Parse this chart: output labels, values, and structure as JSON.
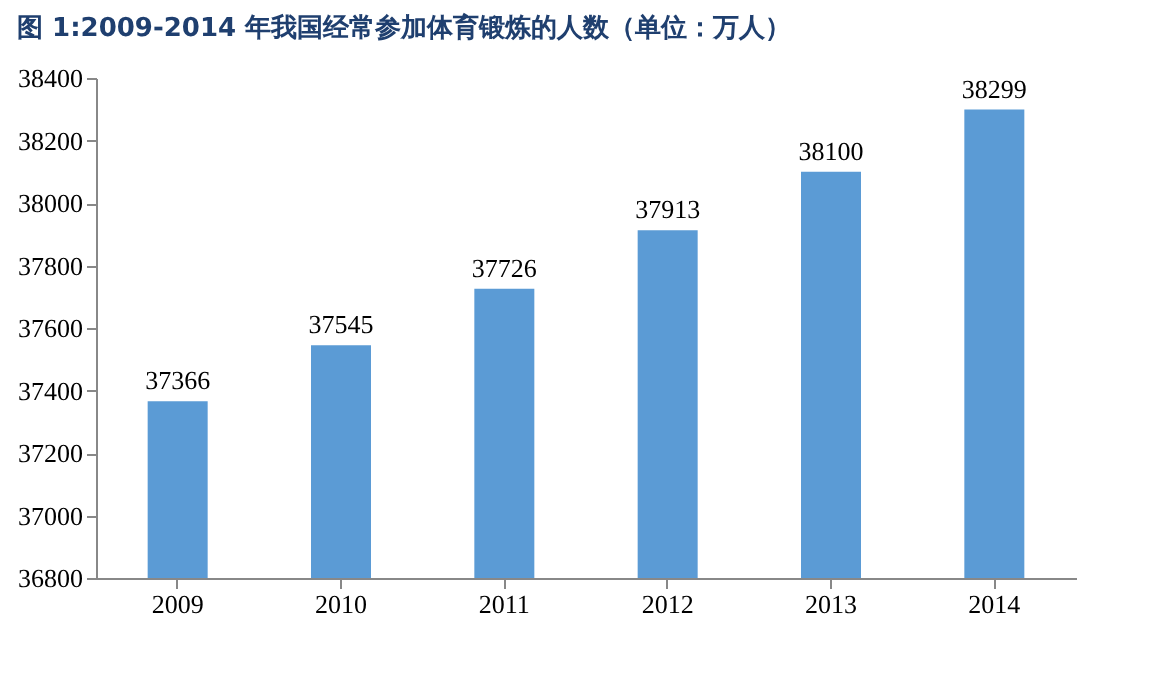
{
  "chart_data": {
    "type": "bar",
    "title": "图 1:2009-2014 年我国经常参加体育锻炼的人数（单位：万人）",
    "categories": [
      "2009",
      "2010",
      "2011",
      "2012",
      "2013",
      "2014"
    ],
    "values": [
      37366,
      37545,
      37726,
      37913,
      38100,
      38299
    ],
    "color": "#5b9bd5",
    "data_labels": true,
    "grid": false,
    "ylim": [
      36800,
      38400
    ],
    "yticks": [
      36800,
      37000,
      37200,
      37400,
      37600,
      37800,
      38000,
      38200,
      38400
    ]
  }
}
